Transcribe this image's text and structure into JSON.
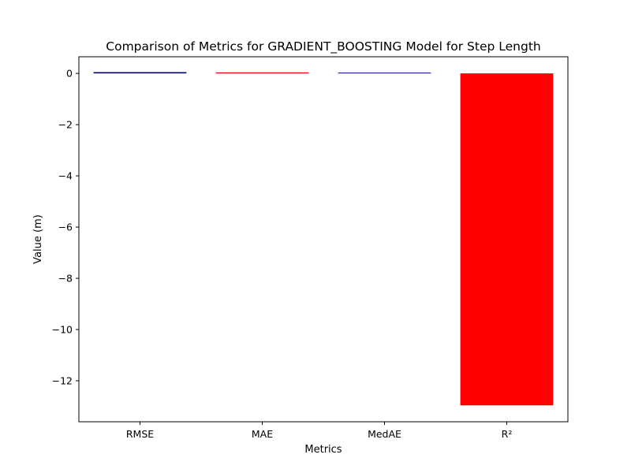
{
  "chart_data": {
    "type": "bar",
    "title": "Comparison of Metrics for GRADIENT_BOOSTING Model for Step Length",
    "xlabel": "Metrics",
    "ylabel": "Value (m)",
    "categories": [
      "RMSE",
      "MAE",
      "MedAE",
      "R²"
    ],
    "values": [
      0.05,
      0.04,
      0.03,
      -12.96
    ],
    "colors": [
      "#000080",
      "#ff0000",
      "#000080",
      "#ff0000"
    ],
    "ylim": [
      -13.6,
      0.65
    ],
    "yticks": [
      0,
      -2,
      -4,
      -6,
      -8,
      -10,
      -12
    ],
    "ytick_labels": [
      "0",
      "−2",
      "−4",
      "−6",
      "−8",
      "−10",
      "−12"
    ],
    "grid": false,
    "legend": "none"
  }
}
